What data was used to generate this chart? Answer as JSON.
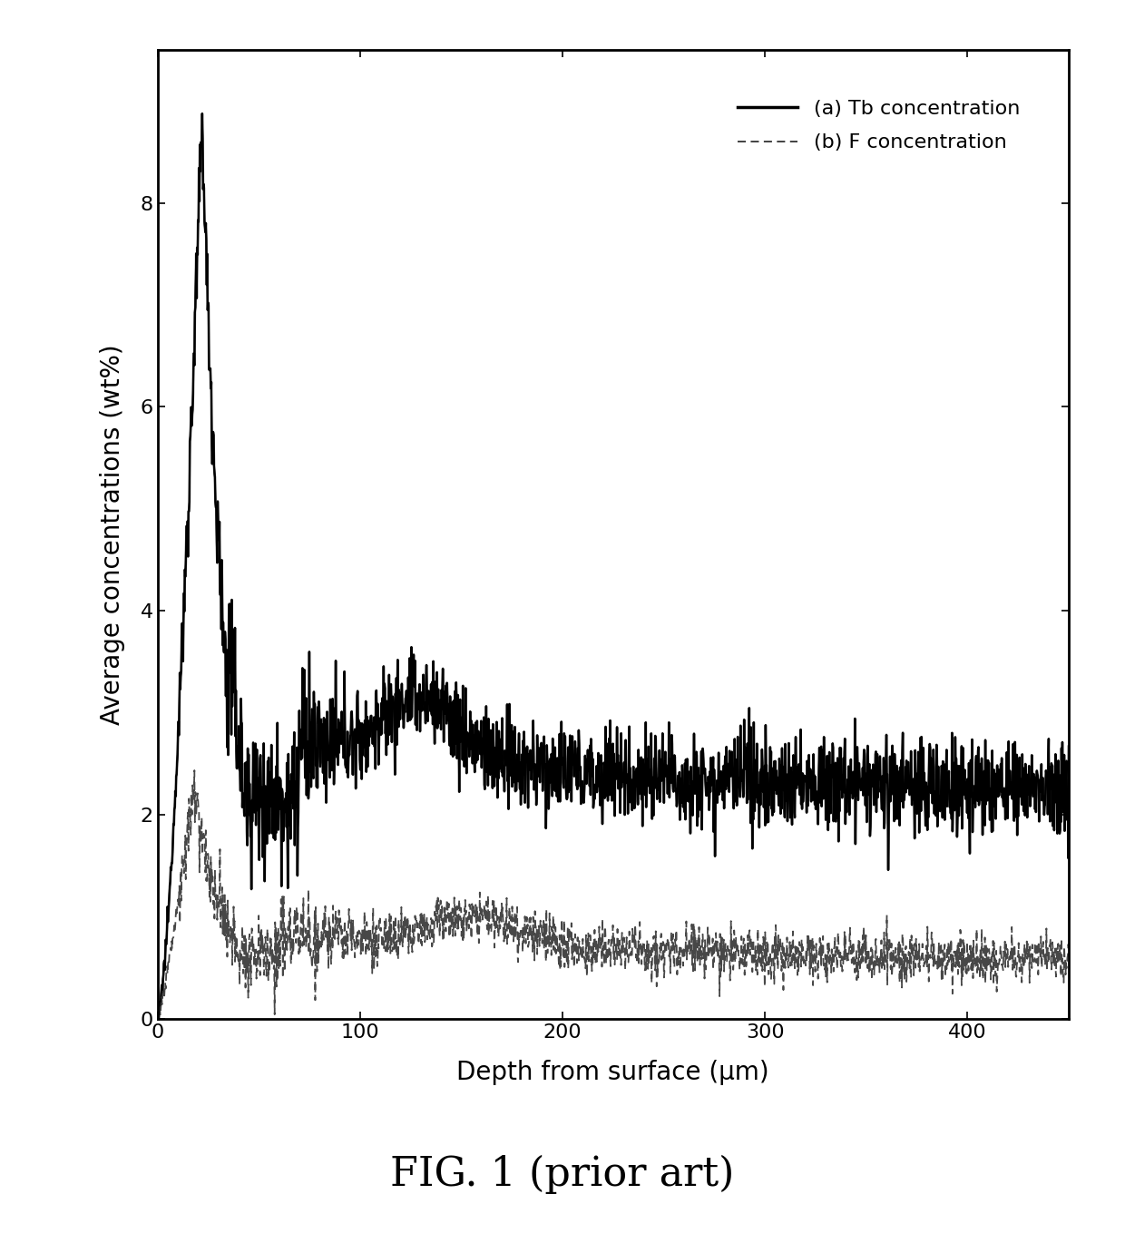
{
  "title": "FIG. 1 (prior art)",
  "xlabel": "Depth from surface (μm)",
  "ylabel": "Average concentrations (wt%)",
  "xlim": [
    0,
    450
  ],
  "ylim": [
    0,
    9.5
  ],
  "xticks": [
    0,
    100,
    200,
    300,
    400
  ],
  "yticks": [
    0,
    2,
    4,
    6,
    8
  ],
  "legend_a": "(a) Tb concentration",
  "legend_b": "(b) F concentration",
  "line_color_a": "#000000",
  "line_color_b": "#333333",
  "bg_color": "#ffffff",
  "title_fontsize": 32,
  "axis_label_fontsize": 20,
  "tick_fontsize": 16,
  "legend_fontsize": 16
}
